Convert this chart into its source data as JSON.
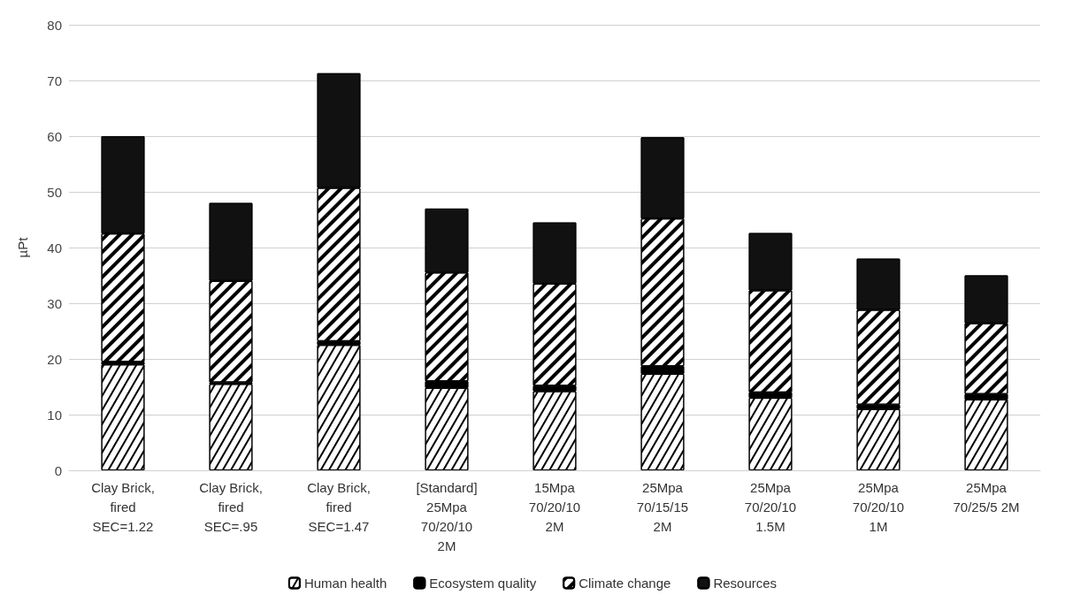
{
  "chart_data": {
    "type": "bar",
    "stacked": true,
    "ylabel": "µPt",
    "categories": [
      "Clay Brick,\nfired\nSEC=1.22",
      "Clay Brick,\nfired\nSEC=.95",
      "Clay Brick,\nfired\nSEC=1.47",
      "[Standard]\n25Mpa\n70/20/10\n2M",
      "15Mpa\n70/20/10\n2M",
      "25Mpa\n70/15/15\n2M",
      "25Mpa\n70/20/10\n1.5M",
      "25Mpa\n70/20/10\n1M",
      "25Mpa\n70/25/5 2M"
    ],
    "series": [
      {
        "name": "Human health",
        "color": "#ffffff",
        "values": [
          19,
          15.5,
          22.5,
          14.8,
          14.2,
          17.3,
          13,
          11,
          12.7
        ]
      },
      {
        "name": "Ecosystem quality",
        "color": "#000000",
        "values": [
          0.5,
          0.3,
          0.7,
          1.2,
          1,
          1.4,
          1,
          0.8,
          1
        ]
      },
      {
        "name": "Climate change",
        "color": "#ffffff",
        "values": [
          23,
          18.2,
          27.5,
          19.5,
          18.3,
          26.5,
          18.3,
          17,
          12.7
        ]
      },
      {
        "name": "Resources",
        "color": "#111111",
        "values": [
          17.5,
          14,
          20.6,
          11.5,
          11,
          14.6,
          10.3,
          9.2,
          8.6
        ]
      }
    ],
    "ylim": [
      0,
      80
    ],
    "yticks": [
      0,
      10,
      20,
      30,
      40,
      50,
      60,
      70,
      80
    ],
    "grid": "y",
    "legend": "bottom"
  }
}
